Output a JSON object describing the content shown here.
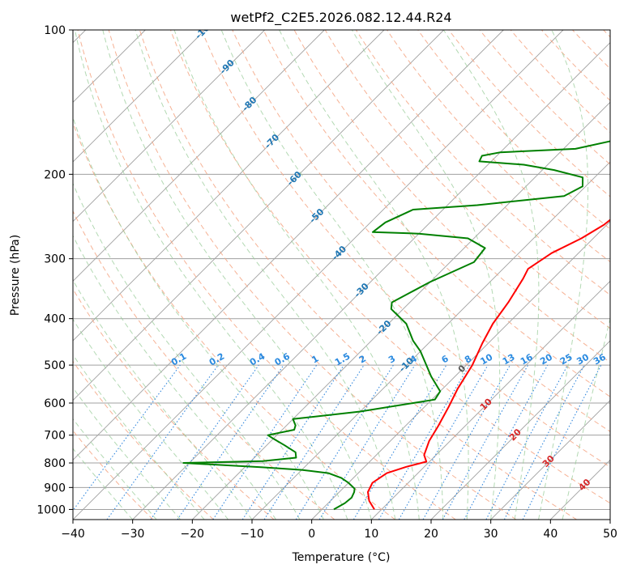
{
  "chart_data": {
    "type": "line",
    "title": "wetPf2_C2E5.2026.082.12.44.R24",
    "xlabel": "Temperature (°C)",
    "ylabel": "Pressure (hPa)",
    "xlim": [
      -40,
      50
    ],
    "ylim": [
      1050,
      100
    ],
    "y_scale": "log",
    "x_ticks": [
      -40,
      -30,
      -20,
      -10,
      0,
      10,
      20,
      30,
      40,
      50
    ],
    "y_ticks": [
      100,
      200,
      300,
      400,
      500,
      600,
      700,
      800,
      900,
      1000
    ],
    "grid": true,
    "series": [
      {
        "color": "#ff0000",
        "points": [
          [
            8.8,
            1000
          ],
          [
            6.5,
            960
          ],
          [
            4.8,
            920
          ],
          [
            4.0,
            880
          ],
          [
            4.8,
            840
          ],
          [
            7.0,
            815
          ],
          [
            9.5,
            795
          ],
          [
            8.0,
            770
          ],
          [
            6.5,
            720
          ],
          [
            5.5,
            670
          ],
          [
            4.0,
            610
          ],
          [
            2.5,
            560
          ],
          [
            1.0,
            500
          ],
          [
            -1.0,
            450
          ],
          [
            -2.5,
            410
          ],
          [
            -3.5,
            370
          ],
          [
            -5.0,
            330
          ],
          [
            -5.8,
            315
          ],
          [
            -4.5,
            292
          ],
          [
            -2.0,
            272
          ],
          [
            -0.5,
            255
          ],
          [
            0.0,
            242
          ],
          [
            1.0,
            228
          ],
          [
            3.5,
            212
          ],
          [
            7.0,
            196
          ],
          [
            9.5,
            180
          ],
          [
            12.0,
            162
          ],
          [
            15.0,
            145
          ],
          [
            18.5,
            128
          ],
          [
            21.5,
            116
          ],
          [
            22.5,
            109
          ],
          [
            23.5,
            100
          ]
        ]
      },
      {
        "color": "#008000",
        "points": [
          [
            2.0,
            1000
          ],
          [
            2.8,
            970
          ],
          [
            3.0,
            945
          ],
          [
            2.5,
            920
          ],
          [
            2.0,
            905
          ],
          [
            0.0,
            880
          ],
          [
            -2.0,
            860
          ],
          [
            -5.0,
            840
          ],
          [
            -10.0,
            827
          ],
          [
            -17.0,
            817
          ],
          [
            -31.0,
            800
          ],
          [
            -18.0,
            793
          ],
          [
            -13.0,
            780
          ],
          [
            -14.0,
            760
          ],
          [
            -17.0,
            735
          ],
          [
            -20.0,
            712
          ],
          [
            -21.5,
            700
          ],
          [
            -18.0,
            682
          ],
          [
            -18.5,
            668
          ],
          [
            -20.0,
            648
          ],
          [
            -10.0,
            625
          ],
          [
            0.5,
            590
          ],
          [
            0.0,
            567
          ],
          [
            -4.0,
            528
          ],
          [
            -10.0,
            468
          ],
          [
            -13.0,
            445
          ],
          [
            -17.0,
            410
          ],
          [
            -22.0,
            382
          ],
          [
            -23.0,
            370
          ],
          [
            -20.0,
            335
          ],
          [
            -16.0,
            305
          ],
          [
            -16.5,
            285
          ],
          [
            -21.0,
            272
          ],
          [
            -30.0,
            266
          ],
          [
            -38.0,
            264
          ],
          [
            -37.5,
            252
          ],
          [
            -35.0,
            237
          ],
          [
            -25.0,
            232
          ],
          [
            -12.0,
            222
          ],
          [
            -10.5,
            212
          ],
          [
            -12.0,
            203
          ],
          [
            -18.0,
            196
          ],
          [
            -24.0,
            191
          ],
          [
            -32.0,
            188
          ],
          [
            -32.5,
            183
          ],
          [
            -30.0,
            180
          ],
          [
            -18.0,
            177
          ],
          [
            -13.0,
            170
          ],
          [
            -11.0,
            160
          ],
          [
            -10.5,
            150
          ],
          [
            -9.5,
            142
          ],
          [
            -7.0,
            134
          ],
          [
            -6.0,
            126
          ],
          [
            -5.0,
            118
          ],
          [
            -4.0,
            112
          ],
          [
            -2.0,
            106
          ],
          [
            -1.5,
            100
          ]
        ]
      }
    ],
    "dry_adiabat_labels": [
      "-100",
      "-90",
      "-80",
      "-70",
      "-60",
      "-50",
      "-40",
      "-30",
      "-20",
      "-10",
      "0",
      "10",
      "20",
      "30",
      "40"
    ],
    "mixing_ratio_labels": [
      "0.1",
      "0.2",
      "0.4",
      "0.6",
      "1",
      "1.5",
      "2",
      "3",
      "4",
      "6",
      "8",
      "10",
      "13",
      "16",
      "20",
      "25",
      "30",
      "36"
    ]
  },
  "colors": {
    "temperature": "#ff0000",
    "dewpoint": "#008000",
    "isotherm": "#a0a0a0",
    "dry_adiabat": "#f4a582",
    "moist_adiabat": "#99cc99",
    "mixing_ratio": "#3388dd",
    "label_blue": "#1f77b4",
    "label_red": "#d62728"
  }
}
